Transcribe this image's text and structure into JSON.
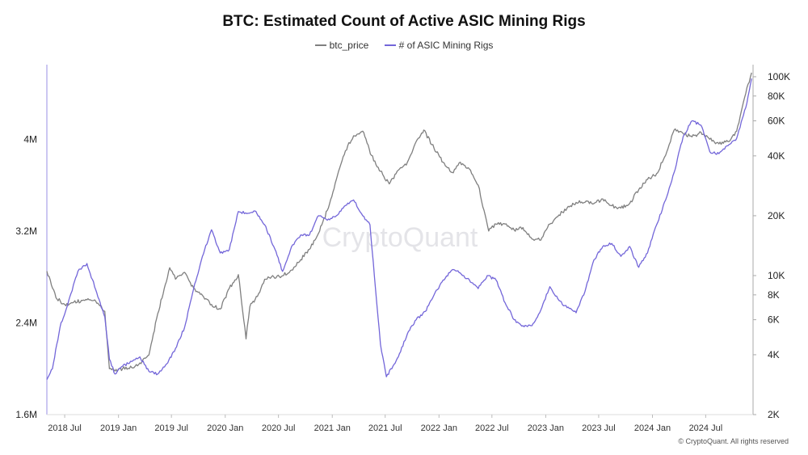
{
  "chart_data": {
    "type": "line",
    "title": "BTC: Estimated Count of Active ASIC Mining Rigs",
    "watermark": "CryptoQuant",
    "copyright": "© CryptoQuant. All rights reserved",
    "x_ticks": [
      "2018 Jul",
      "2019 Jan",
      "2019 Jul",
      "2020 Jan",
      "2020 Jul",
      "2021 Jan",
      "2021 Jul",
      "2022 Jan",
      "2022 Jul",
      "2023 Jan",
      "2023 Jul",
      "2024 Jan",
      "2024 Jul"
    ],
    "y_left": {
      "ticks": [
        "1.6M",
        "2.4M",
        "3.2M",
        "4M"
      ],
      "tick_values": [
        1600000,
        2400000,
        3200000,
        4000000
      ],
      "range": [
        1600000,
        4650000
      ],
      "scale": "linear"
    },
    "y_right": {
      "ticks": [
        "2K",
        "4K",
        "6K",
        "8K",
        "10K",
        "20K",
        "40K",
        "60K",
        "80K",
        "100K"
      ],
      "tick_values": [
        2000,
        4000,
        6000,
        8000,
        10000,
        20000,
        40000,
        60000,
        80000,
        100000
      ],
      "range": [
        2000,
        115000
      ],
      "scale": "log"
    },
    "x_range": [
      "2018-05-01",
      "2024-12-10"
    ],
    "series": [
      {
        "name": "btc_price",
        "axis": "left",
        "color": "#7f7f7f",
        "points": [
          [
            "2018-05-01",
            2850000
          ],
          [
            "2018-06-01",
            2620000
          ],
          [
            "2018-07-01",
            2560000
          ],
          [
            "2018-08-01",
            2580000
          ],
          [
            "2018-09-15",
            2600000
          ],
          [
            "2018-10-15",
            2590000
          ],
          [
            "2018-11-15",
            2500000
          ],
          [
            "2018-12-01",
            2000000
          ],
          [
            "2018-12-20",
            1980000
          ],
          [
            "2019-01-15",
            2000000
          ],
          [
            "2019-02-15",
            2010000
          ],
          [
            "2019-03-15",
            2050000
          ],
          [
            "2019-04-15",
            2120000
          ],
          [
            "2019-05-15",
            2480000
          ],
          [
            "2019-06-25",
            2880000
          ],
          [
            "2019-07-15",
            2780000
          ],
          [
            "2019-08-15",
            2840000
          ],
          [
            "2019-09-15",
            2700000
          ],
          [
            "2019-10-15",
            2640000
          ],
          [
            "2019-11-15",
            2560000
          ],
          [
            "2019-12-15",
            2520000
          ],
          [
            "2020-01-15",
            2700000
          ],
          [
            "2020-02-15",
            2820000
          ],
          [
            "2020-03-12",
            2260000
          ],
          [
            "2020-03-25",
            2540000
          ],
          [
            "2020-04-20",
            2630000
          ],
          [
            "2020-05-15",
            2780000
          ],
          [
            "2020-06-15",
            2800000
          ],
          [
            "2020-07-15",
            2810000
          ],
          [
            "2020-08-15",
            2860000
          ],
          [
            "2020-09-15",
            2950000
          ],
          [
            "2020-10-15",
            3040000
          ],
          [
            "2020-11-15",
            3180000
          ],
          [
            "2020-12-15",
            3380000
          ],
          [
            "2021-01-15",
            3650000
          ],
          [
            "2021-02-15",
            3900000
          ],
          [
            "2021-03-15",
            4030000
          ],
          [
            "2021-04-15",
            4070000
          ],
          [
            "2021-05-15",
            3860000
          ],
          [
            "2021-06-15",
            3720000
          ],
          [
            "2021-07-15",
            3610000
          ],
          [
            "2021-08-15",
            3730000
          ],
          [
            "2021-09-15",
            3800000
          ],
          [
            "2021-10-15",
            3980000
          ],
          [
            "2021-11-10",
            4080000
          ],
          [
            "2021-12-15",
            3920000
          ],
          [
            "2022-01-15",
            3800000
          ],
          [
            "2022-02-15",
            3710000
          ],
          [
            "2022-03-15",
            3800000
          ],
          [
            "2022-04-15",
            3740000
          ],
          [
            "2022-05-15",
            3600000
          ],
          [
            "2022-06-20",
            3200000
          ],
          [
            "2022-07-15",
            3260000
          ],
          [
            "2022-08-15",
            3260000
          ],
          [
            "2022-09-15",
            3210000
          ],
          [
            "2022-10-15",
            3230000
          ],
          [
            "2022-11-15",
            3130000
          ],
          [
            "2022-12-15",
            3120000
          ],
          [
            "2023-01-15",
            3260000
          ],
          [
            "2023-02-15",
            3340000
          ],
          [
            "2023-03-15",
            3400000
          ],
          [
            "2023-04-15",
            3450000
          ],
          [
            "2023-05-15",
            3450000
          ],
          [
            "2023-06-15",
            3440000
          ],
          [
            "2023-07-15",
            3480000
          ],
          [
            "2023-08-15",
            3420000
          ],
          [
            "2023-09-15",
            3400000
          ],
          [
            "2023-10-15",
            3440000
          ],
          [
            "2023-11-15",
            3560000
          ],
          [
            "2023-12-15",
            3650000
          ],
          [
            "2024-01-15",
            3700000
          ],
          [
            "2024-02-15",
            3860000
          ],
          [
            "2024-03-15",
            4080000
          ],
          [
            "2024-04-15",
            4050000
          ],
          [
            "2024-05-15",
            4020000
          ],
          [
            "2024-06-15",
            4060000
          ],
          [
            "2024-07-15",
            4000000
          ],
          [
            "2024-08-15",
            3960000
          ],
          [
            "2024-09-15",
            3980000
          ],
          [
            "2024-10-15",
            4070000
          ],
          [
            "2024-11-15",
            4400000
          ],
          [
            "2024-12-05",
            4580000
          ]
        ]
      },
      {
        "name": "# of ASIC Mining Rigs",
        "axis": "right",
        "color": "#7366d9",
        "points": [
          [
            "2018-05-01",
            3000
          ],
          [
            "2018-05-20",
            3400
          ],
          [
            "2018-06-15",
            5500
          ],
          [
            "2018-07-15",
            7500
          ],
          [
            "2018-08-15",
            10500
          ],
          [
            "2018-09-15",
            11500
          ],
          [
            "2018-10-15",
            8500
          ],
          [
            "2018-11-15",
            6200
          ],
          [
            "2018-12-01",
            3800
          ],
          [
            "2018-12-20",
            3200
          ],
          [
            "2019-01-15",
            3500
          ],
          [
            "2019-02-15",
            3700
          ],
          [
            "2019-03-15",
            3900
          ],
          [
            "2019-04-15",
            3300
          ],
          [
            "2019-05-15",
            3200
          ],
          [
            "2019-06-15",
            3600
          ],
          [
            "2019-07-15",
            4300
          ],
          [
            "2019-08-15",
            5500
          ],
          [
            "2019-09-15",
            8600
          ],
          [
            "2019-10-15",
            12500
          ],
          [
            "2019-11-15",
            17000
          ],
          [
            "2019-12-15",
            13000
          ],
          [
            "2020-01-15",
            13500
          ],
          [
            "2020-02-15",
            21000
          ],
          [
            "2020-03-15",
            20500
          ],
          [
            "2020-04-15",
            21000
          ],
          [
            "2020-05-15",
            18000
          ],
          [
            "2020-06-15",
            14000
          ],
          [
            "2020-07-15",
            10500
          ],
          [
            "2020-08-15",
            14000
          ],
          [
            "2020-09-15",
            16000
          ],
          [
            "2020-10-15",
            16000
          ],
          [
            "2020-11-15",
            20000
          ],
          [
            "2020-12-15",
            19000
          ],
          [
            "2021-01-15",
            20000
          ],
          [
            "2021-02-15",
            22500
          ],
          [
            "2021-03-15",
            24000
          ],
          [
            "2021-04-15",
            20000
          ],
          [
            "2021-05-10",
            18000
          ],
          [
            "2021-05-25",
            10000
          ],
          [
            "2021-06-15",
            4500
          ],
          [
            "2021-07-05",
            3100
          ],
          [
            "2021-08-15",
            3900
          ],
          [
            "2021-09-15",
            5100
          ],
          [
            "2021-10-15",
            6000
          ],
          [
            "2021-11-15",
            6600
          ],
          [
            "2021-12-15",
            8000
          ],
          [
            "2022-01-15",
            9500
          ],
          [
            "2022-02-15",
            10700
          ],
          [
            "2022-03-15",
            10300
          ],
          [
            "2022-04-15",
            9500
          ],
          [
            "2022-05-15",
            8600
          ],
          [
            "2022-06-15",
            10000
          ],
          [
            "2022-07-15",
            9500
          ],
          [
            "2022-08-15",
            7300
          ],
          [
            "2022-09-15",
            6000
          ],
          [
            "2022-10-15",
            5600
          ],
          [
            "2022-11-15",
            5600
          ],
          [
            "2022-12-15",
            6700
          ],
          [
            "2023-01-15",
            8800
          ],
          [
            "2023-02-15",
            7500
          ],
          [
            "2023-03-15",
            6900
          ],
          [
            "2023-04-15",
            6500
          ],
          [
            "2023-05-15",
            8300
          ],
          [
            "2023-06-15",
            12000
          ],
          [
            "2023-07-15",
            14000
          ],
          [
            "2023-08-15",
            14500
          ],
          [
            "2023-09-15",
            12500
          ],
          [
            "2023-10-15",
            14000
          ],
          [
            "2023-11-15",
            11000
          ],
          [
            "2023-12-15",
            13000
          ],
          [
            "2024-01-15",
            18000
          ],
          [
            "2024-02-15",
            24000
          ],
          [
            "2024-03-15",
            33000
          ],
          [
            "2024-04-15",
            50000
          ],
          [
            "2024-05-15",
            60000
          ],
          [
            "2024-06-15",
            57000
          ],
          [
            "2024-07-15",
            42000
          ],
          [
            "2024-08-15",
            41000
          ],
          [
            "2024-09-15",
            45000
          ],
          [
            "2024-10-15",
            49000
          ],
          [
            "2024-11-15",
            70000
          ],
          [
            "2024-12-05",
            98000
          ]
        ]
      }
    ],
    "legend": {
      "position": "top-center",
      "entries": [
        "btc_price",
        "# of ASIC Mining Rigs"
      ]
    },
    "grid": false
  }
}
